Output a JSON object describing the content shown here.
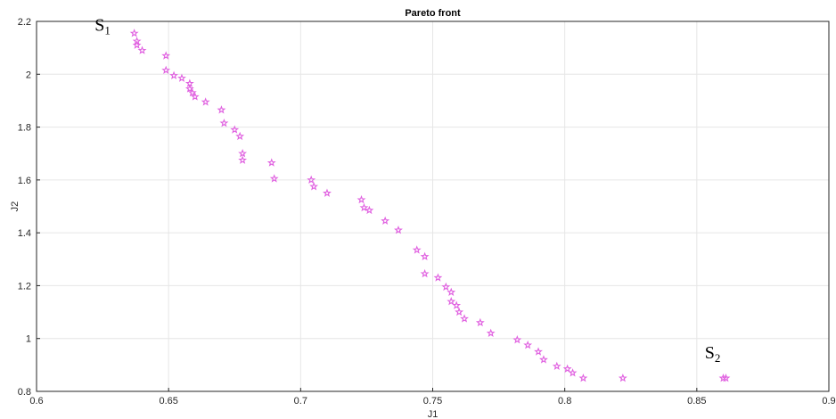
{
  "chart_data": {
    "type": "scatter",
    "title": "Pareto front",
    "xlabel": "J1",
    "ylabel": "J2",
    "xlim": [
      0.6,
      0.9
    ],
    "ylim": [
      0.8,
      2.2
    ],
    "grid": true,
    "x_ticks": [
      "0.6",
      "0.65",
      "0.7",
      "0.75",
      "0.8",
      "0.85",
      "0.9"
    ],
    "y_ticks": [
      "0.8",
      "1",
      "1.2",
      "1.4",
      "1.6",
      "1.8",
      "2",
      "2.2"
    ],
    "marker": "pentagram",
    "marker_color": "#e060e0",
    "series": [
      {
        "points": [
          [
            0.637,
            2.155
          ],
          [
            0.638,
            2.125
          ],
          [
            0.638,
            2.11
          ],
          [
            0.64,
            2.09
          ],
          [
            0.649,
            2.07
          ],
          [
            0.649,
            2.015
          ],
          [
            0.652,
            1.995
          ],
          [
            0.655,
            1.985
          ],
          [
            0.658,
            1.965
          ],
          [
            0.658,
            1.945
          ],
          [
            0.659,
            1.93
          ],
          [
            0.66,
            1.915
          ],
          [
            0.664,
            1.895
          ],
          [
            0.67,
            1.865
          ],
          [
            0.671,
            1.815
          ],
          [
            0.675,
            1.79
          ],
          [
            0.677,
            1.765
          ],
          [
            0.678,
            1.7
          ],
          [
            0.678,
            1.675
          ],
          [
            0.689,
            1.665
          ],
          [
            0.69,
            1.605
          ],
          [
            0.704,
            1.6
          ],
          [
            0.705,
            1.575
          ],
          [
            0.71,
            1.55
          ],
          [
            0.723,
            1.525
          ],
          [
            0.724,
            1.495
          ],
          [
            0.726,
            1.485
          ],
          [
            0.732,
            1.445
          ],
          [
            0.737,
            1.41
          ],
          [
            0.744,
            1.335
          ],
          [
            0.747,
            1.31
          ],
          [
            0.747,
            1.245
          ],
          [
            0.752,
            1.23
          ],
          [
            0.755,
            1.195
          ],
          [
            0.757,
            1.175
          ],
          [
            0.757,
            1.14
          ],
          [
            0.759,
            1.125
          ],
          [
            0.76,
            1.1
          ],
          [
            0.762,
            1.075
          ],
          [
            0.768,
            1.06
          ],
          [
            0.772,
            1.02
          ],
          [
            0.782,
            0.995
          ],
          [
            0.786,
            0.975
          ],
          [
            0.79,
            0.95
          ],
          [
            0.792,
            0.92
          ],
          [
            0.797,
            0.895
          ],
          [
            0.801,
            0.885
          ],
          [
            0.803,
            0.87
          ],
          [
            0.807,
            0.85
          ],
          [
            0.822,
            0.85
          ],
          [
            0.86,
            0.85
          ],
          [
            0.861,
            0.85
          ]
        ]
      }
    ],
    "annotations": [
      {
        "main": "S",
        "sub": "1",
        "x": 0.622,
        "y": 2.165
      },
      {
        "main": "S",
        "sub": "2",
        "x": 0.853,
        "y": 0.925
      }
    ]
  }
}
